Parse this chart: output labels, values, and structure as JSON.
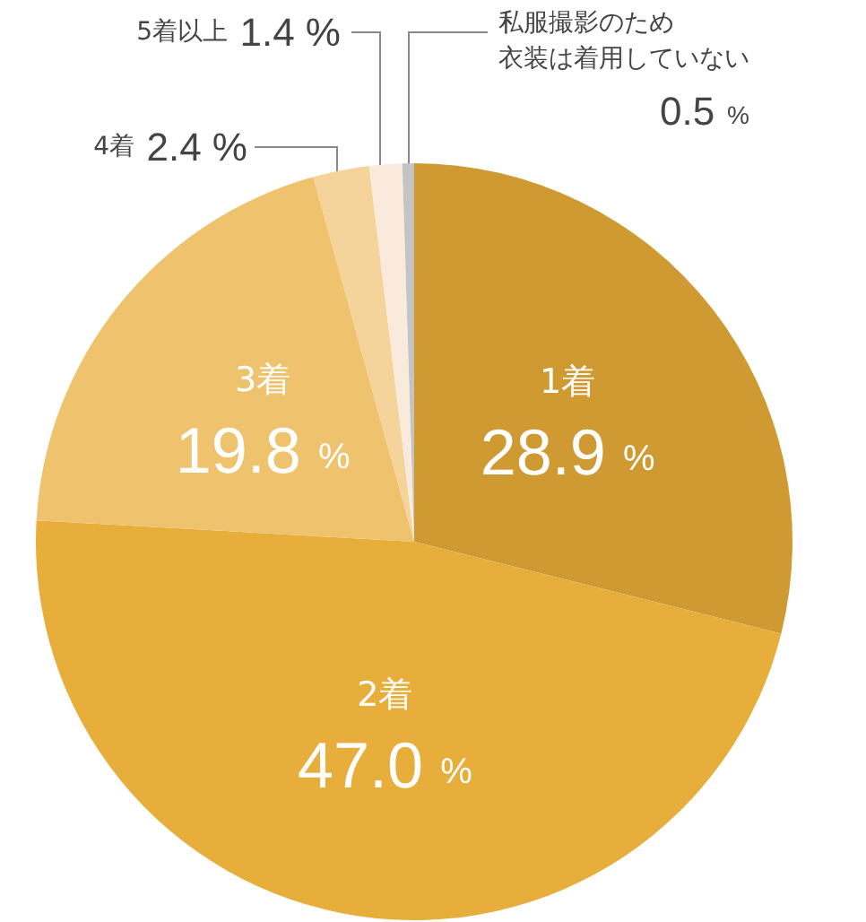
{
  "chart_data": {
    "type": "pie",
    "categories": [
      "1着",
      "2着",
      "3着",
      "4着",
      "5着以上",
      "私服撮影のため衣装は着用していない"
    ],
    "values": [
      28.9,
      47.0,
      19.8,
      2.4,
      1.4,
      0.5
    ],
    "value_labels": [
      "28.9 %",
      "47.0 %",
      "19.8 %",
      "2.4 %",
      "1.4 %",
      "0.5 %"
    ],
    "colors": [
      "#d09a33",
      "#e8ae3c",
      "#efc26e",
      "#f4d49a",
      "#faeadb",
      "#c4c4c4"
    ],
    "legend": false
  }
}
